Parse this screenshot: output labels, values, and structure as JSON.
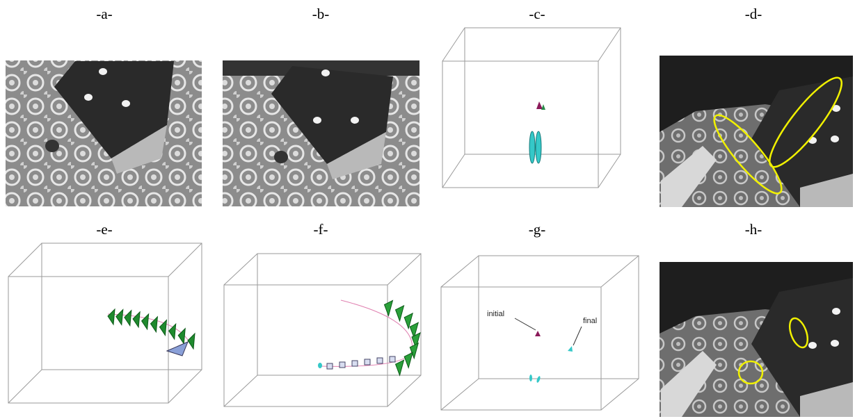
{
  "panels": [
    {
      "label": "-a-"
    },
    {
      "label": "-b-"
    },
    {
      "label": "-c-"
    },
    {
      "label": "-d-"
    },
    {
      "label": "-e-"
    },
    {
      "label": "-f-"
    },
    {
      "label": "-g-"
    },
    {
      "label": "-h-"
    }
  ],
  "annotations": {
    "initial": "initial",
    "final": "final"
  }
}
